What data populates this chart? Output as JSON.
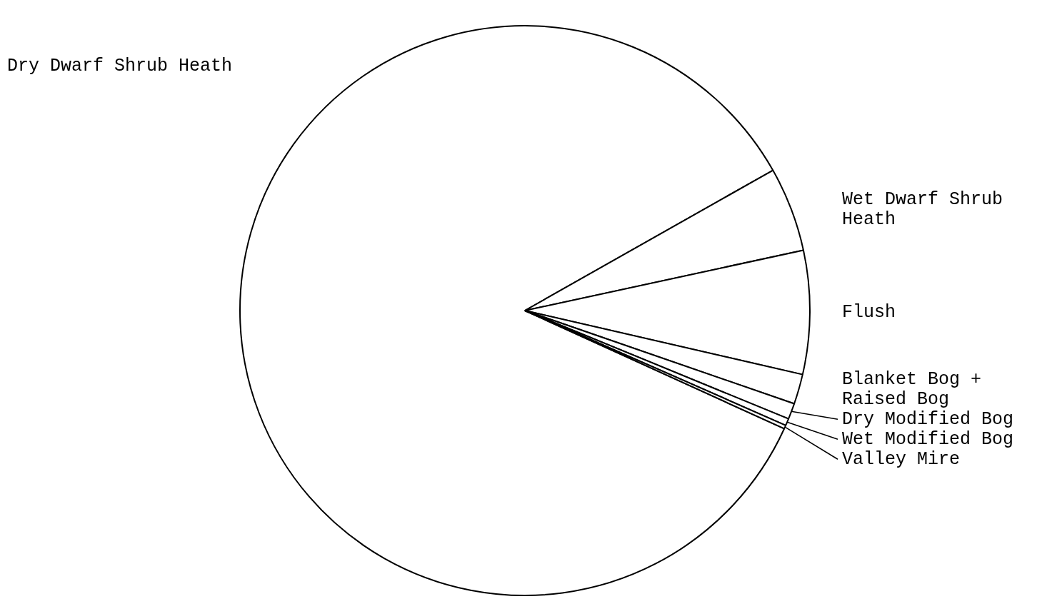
{
  "chart_data": {
    "type": "pie",
    "categories": [
      "Dry Dwarf Shrub Heath",
      "Wet Dwarf Shrub Heath",
      "Flush",
      "Blanket Bog + Raised Bog",
      "Dry Modified Bog",
      "Wet Modified Bog",
      "Valley Mire"
    ],
    "values": [
      85.0,
      4.8,
      7.0,
      1.7,
      0.9,
      0.4,
      0.2
    ],
    "colors": [
      "#ffffff",
      "#ffffff",
      "#ffffff",
      "#ffffff",
      "#ffffff",
      "#ffffff",
      "#ffffff"
    ]
  }
}
